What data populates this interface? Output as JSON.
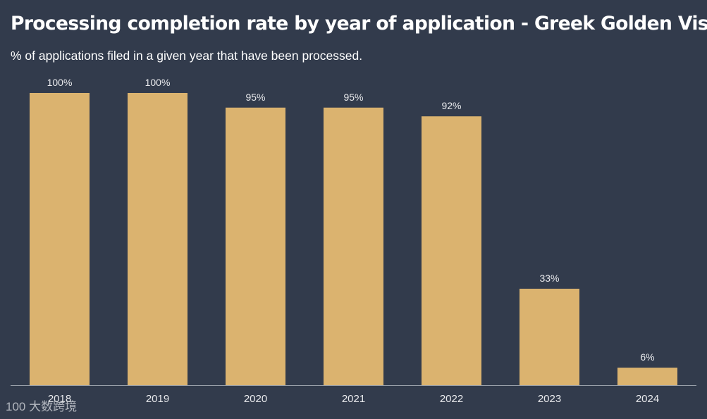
{
  "colors": {
    "background": "#323b4c",
    "bar": "#dbb36f",
    "text": "#ffffff",
    "label": "#e8e9ec",
    "axis": "#9aa0aa",
    "watermark": "#c9ccd2"
  },
  "chart_data": {
    "type": "bar",
    "title": "Processing completion rate by year of application - Greek Golden Visa",
    "subtitle": "% of applications filed in a given year that have been processed.",
    "categories": [
      "2018",
      "2019",
      "2020",
      "2021",
      "2022",
      "2023",
      "2024"
    ],
    "values": [
      100,
      100,
      95,
      95,
      92,
      33,
      6
    ],
    "data_labels": [
      "100%",
      "100%",
      "95%",
      "95%",
      "92%",
      "33%",
      "6%"
    ],
    "xlabel": "",
    "ylabel": "",
    "ylim": [
      0,
      100
    ],
    "grid": false,
    "legend": "none"
  },
  "watermark": {
    "text": "大数跨境",
    "logo_text": "100"
  }
}
